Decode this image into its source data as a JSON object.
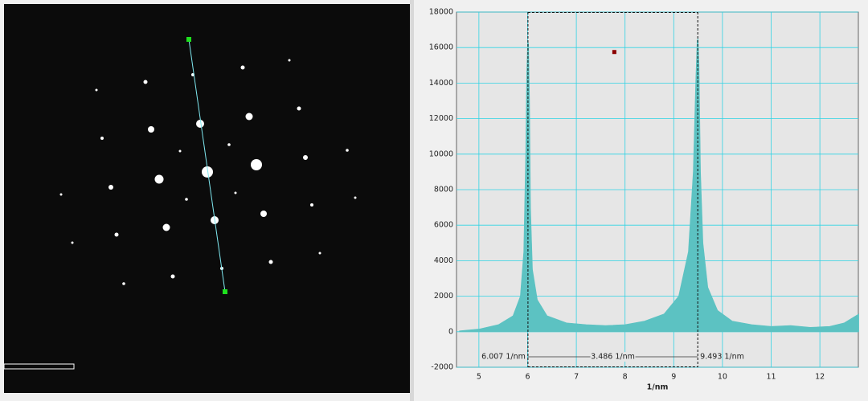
{
  "chart_data": {
    "type": "area",
    "x": [
      4.6,
      5.0,
      5.4,
      5.7,
      5.85,
      5.92,
      5.96,
      5.98,
      6.0,
      6.02,
      6.04,
      6.06,
      6.1,
      6.2,
      6.4,
      6.8,
      7.2,
      7.6,
      8.0,
      8.4,
      8.8,
      9.1,
      9.3,
      9.4,
      9.45,
      9.48,
      9.5,
      9.52,
      9.55,
      9.6,
      9.7,
      9.9,
      10.2,
      10.6,
      11.0,
      11.4,
      11.8,
      12.2,
      12.5,
      12.8
    ],
    "values": [
      50,
      150,
      400,
      900,
      2000,
      4500,
      10000,
      14500,
      16400,
      16200,
      13000,
      7000,
      3500,
      1800,
      900,
      500,
      400,
      350,
      400,
      600,
      1000,
      2000,
      4500,
      9000,
      14000,
      16400,
      16500,
      15000,
      9000,
      5000,
      2500,
      1200,
      600,
      400,
      300,
      350,
      250,
      300,
      500,
      1000
    ],
    "color": "#5cc2c2",
    "xlim": [
      4.54,
      12.79
    ],
    "xticks": [
      5,
      6,
      7,
      8,
      9,
      10,
      11,
      12
    ],
    "ylim": [
      -2000,
      18000
    ],
    "yticks": [
      -2000,
      0,
      2000,
      4000,
      6000,
      8000,
      10000,
      12000,
      14000,
      16000,
      18000
    ],
    "grid": true,
    "grid_color": "#2fd3e4",
    "x_label": "1/nm",
    "cursors": [
      6.007,
      9.493
    ],
    "annotations": [
      "6.007 1/nm",
      "3.486 1/nm",
      "9.493 1/nm"
    ],
    "marker": {
      "x": 7.78,
      "y": 15750,
      "color": "#8b0000"
    }
  }
}
